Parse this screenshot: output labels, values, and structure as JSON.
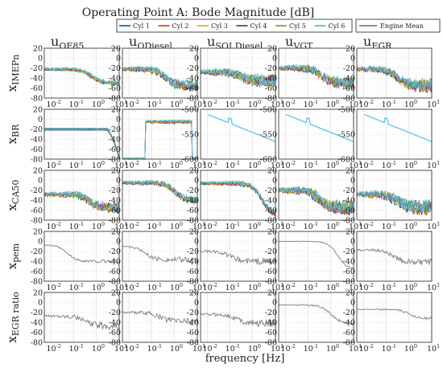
{
  "chart_data": {
    "type": "line",
    "title": "Operating Point A: Bode Magnitude [dB]",
    "xlabel": "frequency [Hz]",
    "x_scale": "log",
    "x_ticks": [
      "10",
      "10",
      "10",
      "10"
    ],
    "x_tick_exps": [
      "-2",
      "-1",
      "0",
      "1"
    ],
    "xlim": [
      0.005,
      10
    ],
    "grid": true,
    "legend": {
      "placement": "top",
      "entries": [
        {
          "label": "Cyl 1",
          "color": "#0072bd"
        },
        {
          "label": "Cyl 2",
          "color": "#d95319"
        },
        {
          "label": "Cyl 3",
          "color": "#edb120"
        },
        {
          "label": "Cyl 4",
          "color": "#7e2f8e"
        },
        {
          "label": "Cyl 5",
          "color": "#77ac30"
        },
        {
          "label": "Cyl 6",
          "color": "#4dbeee"
        }
      ],
      "mean_entry": {
        "label": "Engine Mean",
        "color": "#7f7f7f"
      }
    },
    "inputs": [
      {
        "u": "u",
        "sub": "QE85"
      },
      {
        "u": "u",
        "sub": "QDiesel"
      },
      {
        "u": "u",
        "sub": "SOI Diesel"
      },
      {
        "u": "u",
        "sub": "VGT"
      },
      {
        "u": "u",
        "sub": "EGR"
      }
    ],
    "outputs": [
      {
        "x": "x",
        "sub": "IMEPn",
        "yticks": [
          "20",
          "0",
          "-20",
          "-40",
          "-60",
          "-80"
        ],
        "ylim": [
          -80,
          20
        ]
      },
      {
        "x": "x",
        "sub": "BR",
        "yticks": [
          "20",
          "0",
          "-20",
          "-40",
          "-60",
          "-80"
        ],
        "ylim": [
          -80,
          20
        ],
        "alt_yticks": [
          "-500",
          "-550",
          "-600"
        ],
        "alt_ylim": [
          -600,
          -500
        ]
      },
      {
        "x": "x",
        "sub": "CA50",
        "yticks": [
          "20",
          "0",
          "-20",
          "-40",
          "-60",
          "-80"
        ],
        "ylim": [
          -80,
          20
        ]
      },
      {
        "x": "x",
        "sub": "pem",
        "yticks": [
          "20",
          "0",
          "-20",
          "-40",
          "-60",
          "-80"
        ],
        "ylim": [
          -80,
          20
        ]
      },
      {
        "x": "x",
        "sub": "EGR ratio",
        "yticks": [
          "20",
          "0",
          "-20",
          "-40",
          "-60",
          "-80"
        ],
        "ylim": [
          -80,
          20
        ]
      }
    ],
    "cells": [
      [
        {
          "kind": "cyl",
          "base": -22,
          "end": -50,
          "knee": 0.6,
          "noise": 3
        },
        {
          "kind": "cyl",
          "base": -22,
          "end": -55,
          "knee": 0.4,
          "noise": 8
        },
        {
          "kind": "cyl",
          "base": -28,
          "end": -45,
          "knee": 0.3,
          "noise": 10
        },
        {
          "kind": "cyl",
          "base": -20,
          "end": -50,
          "knee": 0.4,
          "noise": 9
        },
        {
          "kind": "cyl",
          "base": -22,
          "end": -55,
          "knee": 0.3,
          "noise": 10
        }
      ],
      [
        {
          "kind": "cyl",
          "base": -20,
          "end": -80,
          "knee": 3,
          "noise": 0.5,
          "shape": "cliff"
        },
        {
          "kind": "cyl",
          "base": -5,
          "end": -6,
          "knee": 1,
          "noise": 2,
          "shape": "step"
        },
        {
          "kind": "alt",
          "base": -510,
          "end": -565
        },
        {
          "kind": "alt",
          "base": -510,
          "end": -565
        },
        {
          "kind": "alt",
          "base": -510,
          "end": -565
        }
      ],
      [
        {
          "kind": "cyl",
          "base": -28,
          "end": -55,
          "knee": 0.5,
          "noise": 8
        },
        {
          "kind": "cyl",
          "base": -5,
          "end": -40,
          "knee": 1,
          "noise": 5
        },
        {
          "kind": "cyl",
          "base": -6,
          "end": -70,
          "knee": 2.5,
          "noise": 4
        },
        {
          "kind": "cyl",
          "base": -20,
          "end": -55,
          "knee": 0.3,
          "noise": 12
        },
        {
          "kind": "cyl",
          "base": -28,
          "end": -55,
          "knee": 0.3,
          "noise": 12
        }
      ],
      [
        {
          "kind": "mean",
          "base": -5,
          "end": -38,
          "knee": 0.05,
          "noise": 3
        },
        {
          "kind": "mean",
          "base": -8,
          "end": -35,
          "knee": 0.05,
          "noise": 5
        },
        {
          "kind": "mean",
          "base": -18,
          "end": -38,
          "knee": 0.1,
          "noise": 6
        },
        {
          "kind": "mean",
          "base": 2,
          "end": -55,
          "knee": 2,
          "noise": 1
        },
        {
          "kind": "mean",
          "base": -15,
          "end": -40,
          "knee": 0.2,
          "noise": 5
        }
      ],
      [
        {
          "kind": "mean",
          "base": -25,
          "end": -45,
          "knee": 0.3,
          "noise": 6
        },
        {
          "kind": "mean",
          "base": -18,
          "end": -35,
          "knee": 0.2,
          "noise": 6
        },
        {
          "kind": "mean",
          "base": -22,
          "end": -40,
          "knee": 0.2,
          "noise": 6
        },
        {
          "kind": "mean",
          "base": -3,
          "end": -40,
          "knee": 1,
          "noise": 2
        },
        {
          "kind": "mean",
          "base": -12,
          "end": -30,
          "knee": 1,
          "noise": 2
        }
      ]
    ]
  }
}
